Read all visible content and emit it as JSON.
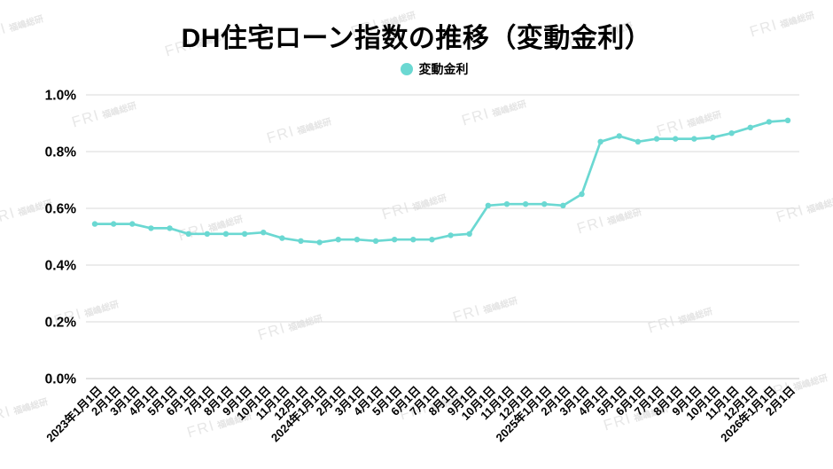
{
  "title": "DH住宅ローン指数の推移（変動金利）",
  "legend": {
    "label": "変動金利"
  },
  "watermark": {
    "brand": "FRI",
    "name": "福嶋総研"
  },
  "colors": {
    "series": "#6bd8d2",
    "grid": "#dadada",
    "axis": "#c6c6c6",
    "text": "#000000"
  },
  "chart_data": {
    "type": "line",
    "title": "DH住宅ローン指数の推移（変動金利）",
    "xlabel": "",
    "ylabel": "",
    "ylim": [
      0,
      1.0
    ],
    "y_ticks": [
      "1.0%",
      "0.8%",
      "0.6%",
      "0.4%",
      "0.2%",
      "0.0%"
    ],
    "grid": true,
    "legend_position": "top-center",
    "x_label_rotation": -45,
    "categories": [
      "2023年1月1日",
      "2月1日",
      "3月1日",
      "4月1日",
      "5月1日",
      "6月1日",
      "7月1日",
      "8月1日",
      "9月1日",
      "10月1日",
      "11月1日",
      "12月1日",
      "2024年1月1日",
      "2月1日",
      "3月1日",
      "4月1日",
      "5月1日",
      "6月1日",
      "7月1日",
      "8月1日",
      "9月1日",
      "10月1日",
      "11月1日",
      "12月1日",
      "2025年1月1日",
      "2月1日",
      "3月1日",
      "4月1日",
      "5月1日",
      "6月1日",
      "7月1日",
      "8月1日",
      "9月1日",
      "10月1日",
      "11月1日",
      "12月1日",
      "2026年1月1日",
      "2月1日"
    ],
    "series": [
      {
        "name": "変動金利",
        "color": "#6bd8d2",
        "values": [
          0.545,
          0.545,
          0.545,
          0.53,
          0.53,
          0.51,
          0.51,
          0.51,
          0.51,
          0.515,
          0.495,
          0.485,
          0.48,
          0.49,
          0.49,
          0.485,
          0.49,
          0.49,
          0.49,
          0.505,
          0.51,
          0.61,
          0.615,
          0.615,
          0.615,
          0.61,
          0.65,
          0.835,
          0.855,
          0.835,
          0.845,
          0.845,
          0.845,
          0.85,
          0.865,
          0.885,
          0.905,
          0.91
        ]
      }
    ]
  }
}
